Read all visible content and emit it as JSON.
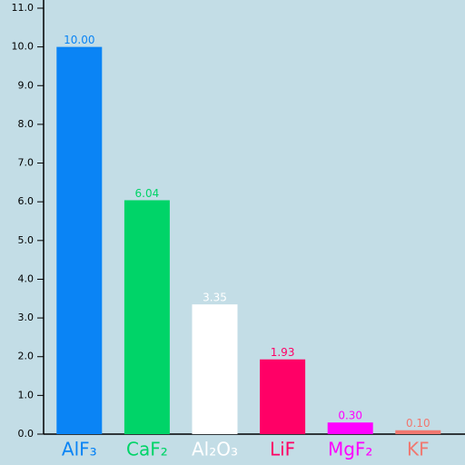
{
  "chart_data": {
    "type": "bar",
    "categories": [
      "AlF₃",
      "CaF₂",
      "Al₂O₃",
      "LiF",
      "MgF₂",
      "KF"
    ],
    "values": [
      10.0,
      6.04,
      3.35,
      1.93,
      0.3,
      0.1
    ],
    "value_labels": [
      "10.00",
      "6.04",
      "3.35",
      "1.93",
      "0.30",
      "0.10"
    ],
    "colors": [
      "#0a84f5",
      "#00d468",
      "#ffffff",
      "#ff0066",
      "#ff00ff",
      "#f07870"
    ],
    "ylim": [
      0,
      11
    ],
    "yticks": [
      {
        "value": 0,
        "label": "0.0"
      },
      {
        "value": 1,
        "label": "1.0"
      },
      {
        "value": 2,
        "label": "2.0"
      },
      {
        "value": 3,
        "label": "3.0"
      },
      {
        "value": 4,
        "label": "4.0"
      },
      {
        "value": 5,
        "label": "5.0"
      },
      {
        "value": 6,
        "label": "6.0"
      },
      {
        "value": 7,
        "label": "7.0"
      },
      {
        "value": 8,
        "label": "8.0"
      },
      {
        "value": 9,
        "label": "9.0"
      },
      {
        "value": 10,
        "label": "10.0"
      },
      {
        "value": 11,
        "label": "11.0"
      }
    ]
  }
}
